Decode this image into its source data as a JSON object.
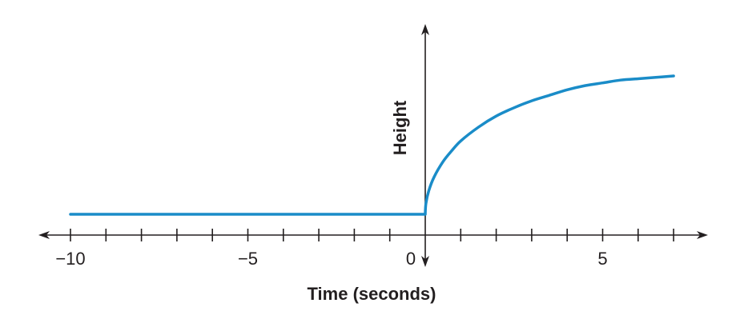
{
  "chart_data": {
    "type": "line",
    "title": "",
    "xlabel": "Time (seconds)",
    "ylabel": "Height",
    "xlim": [
      -10,
      7
    ],
    "x_tick_step": 1,
    "x_tick_labels": [
      {
        "value": -10,
        "label": "−10"
      },
      {
        "value": -5,
        "label": "−5"
      },
      {
        "value": 0,
        "label": "0"
      },
      {
        "value": 5,
        "label": "5"
      }
    ],
    "y_ticks": "none",
    "grid": false,
    "legend": "none",
    "series": [
      {
        "color": "#1a8cc8",
        "x": [
          -10,
          0,
          0.02,
          0.1,
          0.25,
          0.5,
          0.75,
          1,
          1.5,
          2,
          2.5,
          3,
          3.5,
          4,
          4.5,
          5,
          5.5,
          6,
          6.5,
          7
        ],
        "y": [
          0,
          0,
          0.08,
          0.17,
          0.27,
          0.38,
          0.46,
          0.53,
          0.63,
          0.71,
          0.77,
          0.82,
          0.86,
          0.9,
          0.93,
          0.95,
          0.97,
          0.98,
          0.99,
          1.0
        ]
      }
    ]
  },
  "colors": {
    "axis": "#231f20",
    "curve": "#1a8cc8"
  }
}
